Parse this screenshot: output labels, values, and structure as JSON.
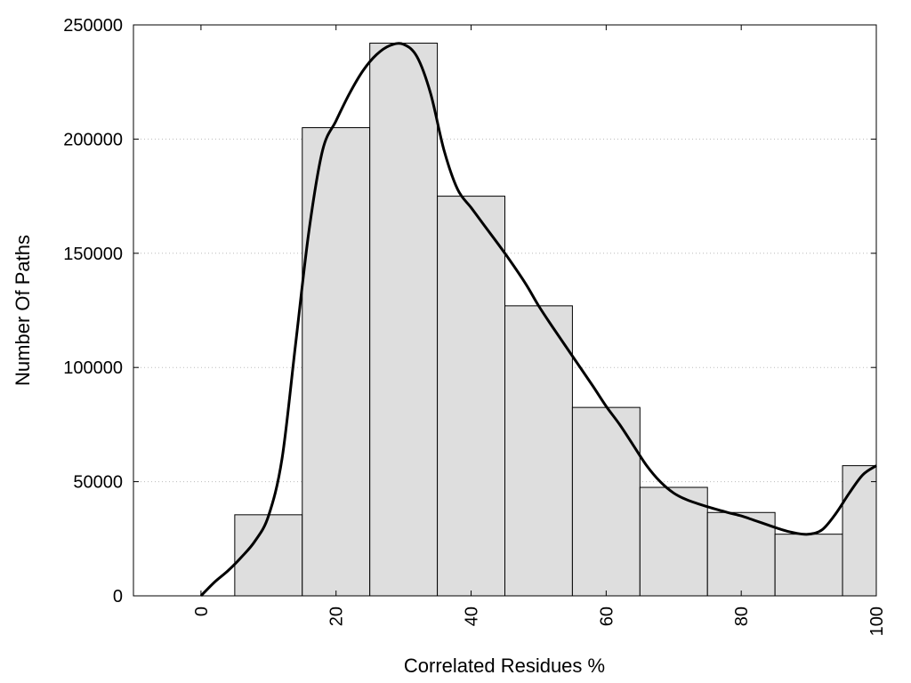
{
  "chart_data": {
    "type": "bar",
    "xlabel": "Correlated Residues %",
    "ylabel": "Number Of Paths",
    "xlim": [
      -10,
      100
    ],
    "ylim": [
      0,
      250000
    ],
    "x_ticks": [
      0,
      20,
      40,
      60,
      80,
      100
    ],
    "y_ticks": [
      0,
      50000,
      100000,
      150000,
      200000,
      250000
    ],
    "grid": "horizontal dotted",
    "bar_color": "#dedede",
    "bar_edge_color": "#000000",
    "line_color": "#000000",
    "bins": [
      {
        "x0": 5,
        "x1": 15,
        "value": 35500
      },
      {
        "x0": 15,
        "x1": 25,
        "value": 205000
      },
      {
        "x0": 25,
        "x1": 35,
        "value": 242000
      },
      {
        "x0": 35,
        "x1": 45,
        "value": 175000
      },
      {
        "x0": 45,
        "x1": 55,
        "value": 127000
      },
      {
        "x0": 55,
        "x1": 65,
        "value": 82500
      },
      {
        "x0": 65,
        "x1": 75,
        "value": 47500
      },
      {
        "x0": 75,
        "x1": 85,
        "value": 36500
      },
      {
        "x0": 85,
        "x1": 95,
        "value": 27000
      },
      {
        "x0": 95,
        "x1": 100,
        "value": 57000
      }
    ],
    "smooth_curve": {
      "x": [
        0,
        2,
        4,
        6,
        8,
        10,
        12,
        14,
        16,
        18,
        20,
        22,
        24,
        26,
        28,
        30,
        32,
        34,
        36,
        38,
        40,
        42,
        45,
        48,
        50,
        52,
        55,
        58,
        60,
        62,
        64,
        66,
        68,
        70,
        72,
        75,
        78,
        80,
        82,
        84,
        86,
        88,
        90,
        92,
        94,
        96,
        98,
        100
      ],
      "y": [
        0,
        6000,
        11000,
        17000,
        24000,
        35000,
        60000,
        110000,
        160000,
        195000,
        208000,
        220000,
        230000,
        237000,
        241000,
        241500,
        236000,
        220000,
        195000,
        178000,
        170000,
        162000,
        150000,
        137000,
        127000,
        118000,
        105000,
        92000,
        83000,
        75000,
        66000,
        57000,
        50000,
        45000,
        42000,
        39000,
        36500,
        35000,
        33000,
        31000,
        29000,
        27500,
        27000,
        29000,
        36000,
        45000,
        53000,
        57000
      ]
    }
  }
}
